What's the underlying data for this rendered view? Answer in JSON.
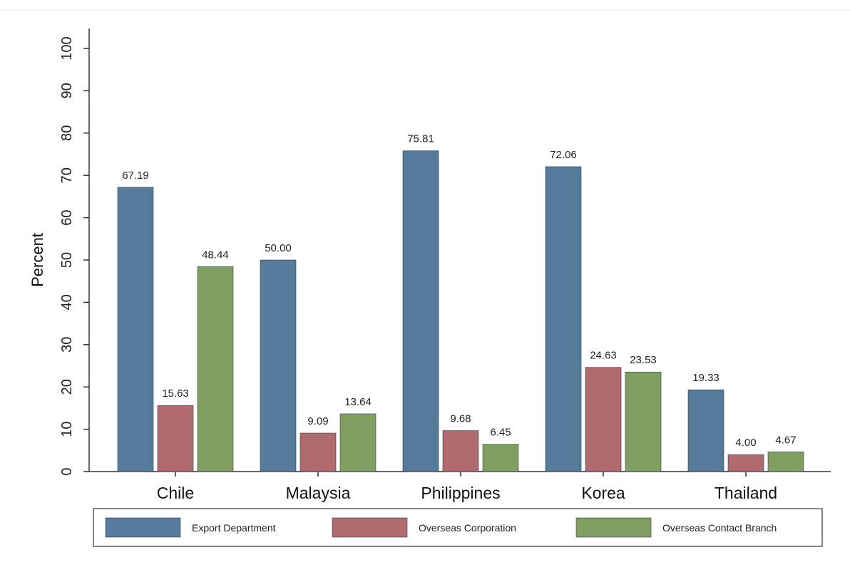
{
  "chart_data": {
    "type": "bar",
    "title": "",
    "xlabel": "",
    "ylabel": "Percent",
    "ylim": [
      0,
      100
    ],
    "yticks": [
      0,
      10,
      20,
      30,
      40,
      50,
      60,
      70,
      80,
      90,
      100
    ],
    "grid": false,
    "legend_position": "bottom",
    "categories": [
      "Chile",
      "Malaysia",
      "Philippines",
      "Korea",
      "Thailand"
    ],
    "series": [
      {
        "name": "Export Department",
        "color": "#557a9a",
        "values": [
          67.19,
          50.0,
          75.81,
          72.06,
          19.33
        ],
        "labels": [
          "67.19",
          "50.00",
          "75.81",
          "72.06",
          "19.33"
        ]
      },
      {
        "name": "Overseas Corporation",
        "color": "#b16a6e",
        "values": [
          15.63,
          9.09,
          9.68,
          24.63,
          4.0
        ],
        "labels": [
          "15.63",
          "9.09",
          "9.68",
          "24.63",
          "4.00"
        ]
      },
      {
        "name": "Overseas Contact Branch",
        "color": "#7f9e60",
        "values": [
          48.44,
          13.64,
          6.45,
          23.53,
          4.67
        ],
        "labels": [
          "48.44",
          "13.64",
          "6.45",
          "23.53",
          "4.67"
        ]
      }
    ]
  }
}
